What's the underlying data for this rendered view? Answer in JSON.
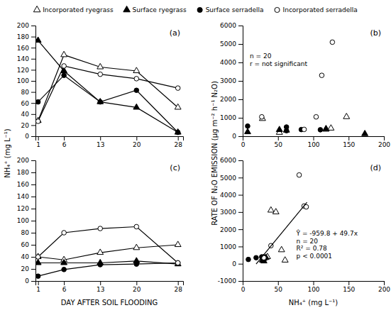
{
  "chart_data": [
    {
      "type": "line",
      "title": "(a)",
      "ylabel": "NH₄⁺ (mg L⁻¹)",
      "x": [
        1,
        6,
        13,
        20,
        28
      ],
      "xlim": [
        0.5,
        29
      ],
      "xticks": [
        1,
        6,
        13,
        20,
        28
      ],
      "ylim": [
        0,
        200
      ],
      "yticks": [
        0,
        20,
        40,
        60,
        80,
        100,
        120,
        140,
        160,
        180,
        200
      ],
      "grid": false,
      "series": [
        {
          "name": "Incorporated ryegrass",
          "color": "black",
          "marker": "triangle-open",
          "values": [
            28,
            147,
            125,
            118,
            52
          ]
        },
        {
          "name": "Surface ryegrass",
          "color": "black",
          "marker": "triangle",
          "values": [
            173,
            118,
            62,
            52,
            7
          ]
        },
        {
          "name": "Surface serradella",
          "color": "black",
          "marker": "circle",
          "values": [
            62,
            110,
            62,
            83,
            7
          ]
        },
        {
          "name": "Incorporated serradella",
          "color": "black",
          "marker": "circle-open",
          "values": [
            27,
            127,
            112,
            104,
            87
          ]
        }
      ]
    },
    {
      "type": "scatter",
      "title": "(b)",
      "ylabel": "RATE OF N₂O EMISSION (μg m⁻² h⁻¹ N₂O)",
      "annotation": "n = 20\nr = not significant",
      "xlim": [
        0,
        200
      ],
      "xticks": [
        0,
        50,
        100,
        150,
        200
      ],
      "ylim": [
        0,
        6000
      ],
      "yticks": [
        0,
        1000,
        2000,
        3000,
        4000,
        5000,
        6000
      ],
      "grid": false,
      "series": [
        {
          "color": "black",
          "marker": "triangle-open",
          "x": [
            28,
            147,
            125,
            118,
            52
          ],
          "values": [
            950,
            1050,
            430,
            370,
            200
          ]
        },
        {
          "color": "black",
          "marker": "triangle",
          "x": [
            173,
            118,
            62,
            52,
            7
          ],
          "values": [
            130,
            400,
            320,
            350,
            230
          ]
        },
        {
          "color": "black",
          "marker": "circle",
          "x": [
            62,
            110,
            62,
            83,
            7
          ],
          "values": [
            500,
            350,
            300,
            360,
            550
          ]
        },
        {
          "color": "black",
          "marker": "circle-open",
          "x": [
            27,
            127,
            112,
            104,
            87
          ],
          "values": [
            1050,
            5100,
            3300,
            1050,
            370
          ]
        }
      ]
    },
    {
      "type": "line",
      "title": "(c)",
      "xlabel": "DAY AFTER SOIL FLOODING",
      "x": [
        1,
        6,
        13,
        20,
        28
      ],
      "xlim": [
        0.5,
        29
      ],
      "xticks": [
        1,
        6,
        13,
        20,
        28
      ],
      "ylim": [
        0,
        200
      ],
      "yticks": [
        0,
        20,
        40,
        60,
        80,
        100,
        120,
        140,
        160,
        180,
        200
      ],
      "grid": false,
      "series": [
        {
          "color": "black",
          "marker": "triangle-open",
          "values": [
            40,
            35,
            47,
            55,
            60
          ]
        },
        {
          "color": "black",
          "marker": "triangle",
          "values": [
            30,
            30,
            30,
            33,
            28
          ]
        },
        {
          "color": "black",
          "marker": "circle",
          "values": [
            8,
            19,
            27,
            28,
            30
          ]
        },
        {
          "color": "black",
          "marker": "circle-open",
          "values": [
            40,
            80,
            87,
            90,
            30
          ]
        }
      ]
    },
    {
      "type": "scatter",
      "title": "(d)",
      "xlabel": "NH₄⁺ (mg L⁻¹)",
      "annotation": "Ŷ = -959.8 + 49.7x\nn = 20\nR² = 0.78\np < 0.0001",
      "xlim": [
        0,
        200
      ],
      "xticks": [
        0,
        50,
        100,
        150,
        200
      ],
      "ylim": [
        -1000,
        6000
      ],
      "yticks": [
        -1000,
        0,
        1000,
        2000,
        3000,
        4000,
        5000,
        6000
      ],
      "grid": false,
      "series": [
        {
          "color": "black",
          "marker": "triangle-open",
          "x": [
            40,
            47,
            55,
            60,
            35
          ],
          "values": [
            3100,
            3000,
            800,
            200,
            400
          ]
        },
        {
          "color": "black",
          "marker": "triangle",
          "x": [
            30,
            30,
            33,
            28,
            30
          ],
          "values": [
            300,
            350,
            350,
            200,
            150
          ]
        },
        {
          "color": "black",
          "marker": "circle",
          "x": [
            8,
            19,
            27,
            28,
            30
          ],
          "values": [
            250,
            350,
            400,
            350,
            400
          ]
        },
        {
          "color": "black",
          "marker": "circle-open",
          "x": [
            40,
            80,
            87,
            90,
            30
          ],
          "values": [
            1050,
            5150,
            3350,
            3300,
            350
          ]
        },
        {
          "type": "line",
          "color": "black",
          "marker": "none",
          "x": [
            19,
            91
          ],
          "values": [
            -15.5,
            3562.9
          ]
        }
      ]
    }
  ]
}
